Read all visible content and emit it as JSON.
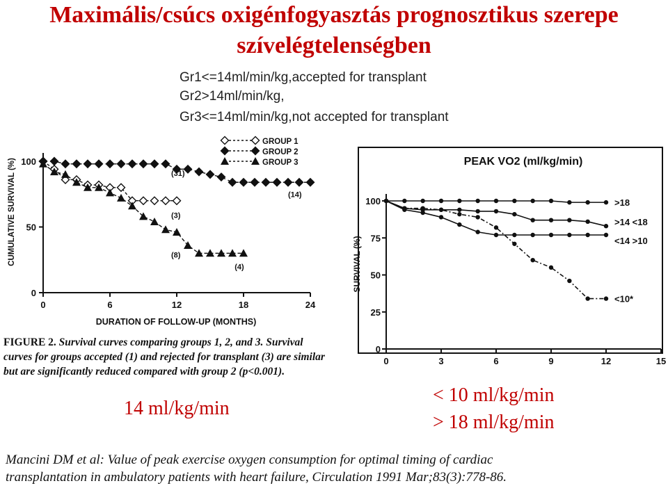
{
  "title_line1": "Maximális/csúcs oxigénfogyasztás prognosztikus szerepe",
  "title_line2": "szívelégtelenségben",
  "notes": [
    "Gr1<=14ml/min/kg,accepted for transplant",
    "Gr2>14ml/min/kg,",
    "Gr3<=14ml/min/kg,not accepted for transplant"
  ],
  "caption": {
    "figure_label": "FIGURE 2.",
    "text": "Survival curves comparing groups 1, 2, and 3. Survival curves for groups accepted (1) and rejected for transplant (3) are similar but are significantly reduced compared with group 2 (p<0.001)."
  },
  "label_14": "14 ml/kg/min",
  "label_lt10": "< 10 ml/kg/min",
  "label_gt18": "> 18 ml/kg/min",
  "reference_line1": "Mancini DM et al: Value of peak exercise oxygen consumption for optimal timing of cardiac",
  "reference_line2": "transplantation in ambulatory patients with heart failure, Circulation 1991 Mar;83(3):778-86.",
  "colors": {
    "title": "#c00000",
    "highlight": "#c00000"
  },
  "chart_data": [
    {
      "type": "line",
      "xlabel": "DURATION OF FOLLOW-UP (MONTHS)",
      "ylabel": "CUMULATIVE SURVIVAL (%)",
      "xticks": [
        0,
        6,
        12,
        18,
        24
      ],
      "yticks": [
        0,
        50,
        100
      ],
      "xlim": [
        0,
        24
      ],
      "ylim": [
        0,
        100
      ],
      "legend_position": "top-center",
      "series": [
        {
          "name": "GROUP 1",
          "marker": "open-diamond",
          "end_label": "(3)",
          "x": [
            0,
            1,
            2,
            3,
            4,
            5,
            6,
            7,
            8,
            9,
            10,
            11,
            12
          ],
          "y": [
            100,
            94,
            86,
            86,
            82,
            82,
            80,
            80,
            70,
            70,
            70,
            70,
            70
          ]
        },
        {
          "name": "GROUP 2",
          "marker": "filled-diamond",
          "end_label": "(31)",
          "end_label2": "(14)",
          "x": [
            0,
            1,
            2,
            3,
            4,
            5,
            6,
            7,
            8,
            9,
            10,
            11,
            12,
            13,
            14,
            15,
            16,
            17,
            18,
            19,
            20,
            21,
            22,
            23,
            24
          ],
          "y": [
            100,
            100,
            98,
            98,
            98,
            98,
            98,
            98,
            98,
            98,
            98,
            98,
            94,
            94,
            92,
            90,
            88,
            84,
            84,
            84,
            84,
            84,
            84,
            84,
            84
          ]
        },
        {
          "name": "GROUP 3",
          "marker": "filled-triangle",
          "end_label": "(8)",
          "end_label2": "(4)",
          "x": [
            0,
            1,
            2,
            3,
            4,
            5,
            6,
            7,
            8,
            9,
            10,
            11,
            12,
            13,
            14,
            15,
            16,
            17,
            18
          ],
          "y": [
            98,
            92,
            90,
            84,
            80,
            80,
            76,
            72,
            66,
            58,
            54,
            48,
            46,
            36,
            30,
            30,
            30,
            30,
            30
          ]
        }
      ]
    },
    {
      "type": "line",
      "title": "PEAK VO2 (ml/kg/min)",
      "ylabel": "SURVIVAL (%)",
      "xticks": [
        0,
        3,
        6,
        9,
        12,
        15
      ],
      "yticks": [
        0,
        25,
        50,
        75,
        100
      ],
      "xlim": [
        0,
        15
      ],
      "ylim": [
        0,
        100
      ],
      "series": [
        {
          "label": ">18",
          "x": [
            0,
            1,
            2,
            3,
            4,
            5,
            6,
            7,
            8,
            9,
            10,
            11,
            12
          ],
          "y": [
            100,
            100,
            100,
            100,
            100,
            100,
            100,
            100,
            100,
            100,
            99,
            99,
            99
          ]
        },
        {
          "label": ">14 <18",
          "x": [
            0,
            1,
            2,
            3,
            4,
            5,
            6,
            7,
            8,
            9,
            10,
            11,
            12
          ],
          "y": [
            100,
            95,
            94,
            94,
            94,
            93,
            93,
            91,
            87,
            87,
            87,
            86,
            83
          ]
        },
        {
          "label": "<14 >10",
          "x": [
            0,
            1,
            2,
            3,
            4,
            5,
            6,
            7,
            8,
            9,
            10,
            11,
            12
          ],
          "y": [
            100,
            94,
            92,
            89,
            84,
            79,
            77,
            77,
            77,
            77,
            77,
            77,
            77
          ]
        },
        {
          "label": "<10*",
          "x": [
            0,
            1,
            2,
            3,
            4,
            5,
            6,
            7,
            8,
            9,
            10,
            11,
            12
          ],
          "y": [
            100,
            95,
            95,
            94,
            91,
            89,
            82,
            71,
            60,
            55,
            46,
            34,
            34
          ]
        }
      ]
    }
  ]
}
